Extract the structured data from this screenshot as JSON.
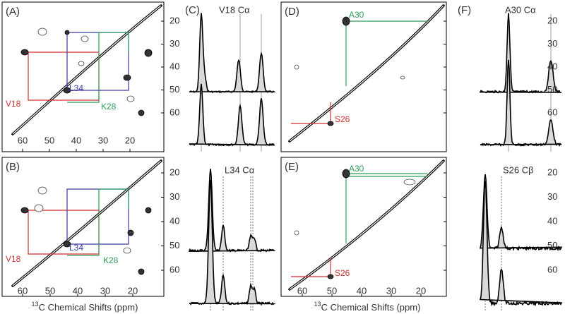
{
  "panel_labels": [
    "(A)",
    "(B)",
    "(C)",
    "(D)",
    "(E)",
    "(F)"
  ],
  "spectrum_titles": [
    "V18 Cα",
    "L34 Cα",
    "A30 Cα",
    "S26 Cβ"
  ],
  "panel_a": {
    "labels": [
      "V18",
      "L34",
      "K28"
    ]
  },
  "panel_b": {
    "labels": [
      "V18",
      "L34",
      "K28"
    ]
  },
  "panel_d": {
    "labels": [
      "A30",
      "S26"
    ]
  },
  "panel_e": {
    "labels": [
      "A30",
      "S26"
    ]
  },
  "axis_ticks_y": [
    20,
    30,
    40,
    50,
    60
  ],
  "axis_ticks_x": [
    60,
    50,
    40,
    30,
    20
  ],
  "x_axis_title": {
    "isotope": "13",
    "text": "C Chemical Shifts (ppm)"
  }
}
